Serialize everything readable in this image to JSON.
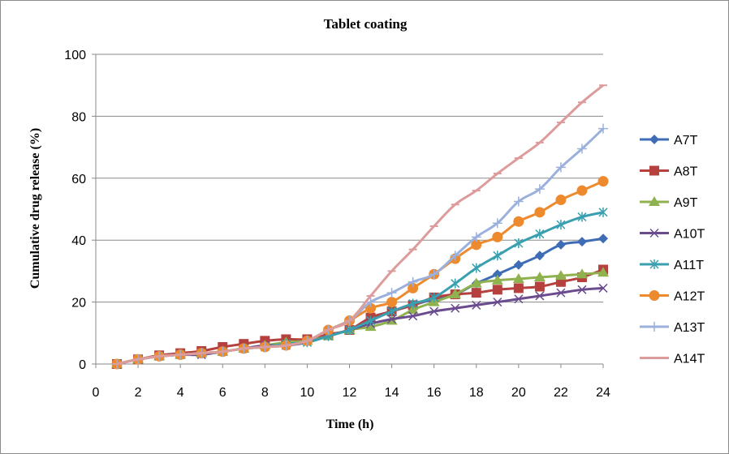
{
  "chart_data": {
    "type": "line",
    "title": "Tablet coating",
    "xlabel": "Time (h)",
    "ylabel": "Cumulative drug release (%)",
    "xlim": [
      0,
      24
    ],
    "ylim": [
      0,
      100
    ],
    "xticks": [
      0,
      2,
      4,
      6,
      8,
      10,
      12,
      14,
      16,
      18,
      20,
      22,
      24
    ],
    "yticks": [
      0,
      20,
      40,
      60,
      80,
      100
    ],
    "grid": "horizontal",
    "legend_position": "right",
    "x": [
      1,
      2,
      3,
      4,
      5,
      6,
      7,
      8,
      9,
      10,
      11,
      12,
      13,
      14,
      15,
      16,
      17,
      18,
      19,
      20,
      21,
      22,
      23,
      24
    ],
    "series": [
      {
        "name": "A7T",
        "color": "#3E6DB5",
        "marker": "diamond",
        "values": [
          0,
          1.5,
          2.5,
          3,
          3.5,
          4,
          5,
          6,
          6.5,
          7.5,
          9.5,
          11,
          15,
          17,
          19,
          21,
          22.5,
          26,
          29,
          32,
          35,
          38.5,
          39.5,
          40.5
        ]
      },
      {
        "name": "A8T",
        "color": "#B5403E",
        "marker": "square",
        "values": [
          0,
          1.5,
          2.8,
          3.5,
          4.2,
          5.5,
          6.5,
          7.5,
          8,
          8,
          9.5,
          11,
          15,
          17,
          19,
          21.5,
          22.5,
          23,
          24,
          24.5,
          25,
          26.5,
          28,
          30.5
        ]
      },
      {
        "name": "A9T",
        "color": "#8FB24F",
        "marker": "triangle",
        "values": [
          0,
          1.5,
          2.5,
          3,
          3.5,
          4,
          5,
          6,
          7,
          7.5,
          9,
          11,
          12,
          14,
          17.5,
          20,
          22.5,
          26,
          27,
          27.5,
          28,
          28.5,
          29,
          29.5
        ]
      },
      {
        "name": "A10T",
        "color": "#6A4B8E",
        "marker": "x",
        "values": [
          0,
          1.5,
          2.5,
          3,
          3,
          4,
          5,
          6,
          6,
          7,
          9,
          11,
          13,
          14.5,
          15.5,
          17,
          18,
          19,
          20,
          21,
          22,
          23,
          24,
          24.5
        ]
      },
      {
        "name": "A11T",
        "color": "#3A9FAE",
        "marker": "star",
        "values": [
          0,
          1.5,
          2.5,
          3,
          3.5,
          4,
          5,
          5.5,
          6.5,
          7,
          9,
          11,
          14,
          17,
          19.5,
          21.5,
          26,
          31,
          35,
          39,
          42,
          45,
          47.5,
          49
        ]
      },
      {
        "name": "A12T",
        "color": "#EE8A2E",
        "marker": "circle",
        "values": [
          0,
          1.5,
          2.5,
          3,
          3.5,
          4,
          5,
          5.5,
          6,
          7.5,
          11,
          14,
          18,
          20,
          24.5,
          29,
          34,
          38.5,
          41,
          46,
          49,
          53,
          56,
          59
        ]
      },
      {
        "name": "A13T",
        "color": "#9BB0DA",
        "marker": "plus",
        "values": [
          0,
          1.5,
          2.5,
          3,
          3.5,
          4,
          5,
          5.5,
          6,
          7.5,
          11,
          14,
          20,
          23,
          26.5,
          29,
          35,
          41,
          45.5,
          52.5,
          56.5,
          63.5,
          69.5,
          76
        ]
      },
      {
        "name": "A14T",
        "color": "#DC9C9B",
        "marker": "dash",
        "values": [
          0,
          1.5,
          2.5,
          3,
          3.5,
          4,
          5,
          5.5,
          6,
          7.5,
          11,
          14,
          22,
          30,
          37,
          44.5,
          51.5,
          56,
          61.5,
          66.5,
          71.5,
          78,
          84.5,
          90
        ]
      }
    ]
  }
}
